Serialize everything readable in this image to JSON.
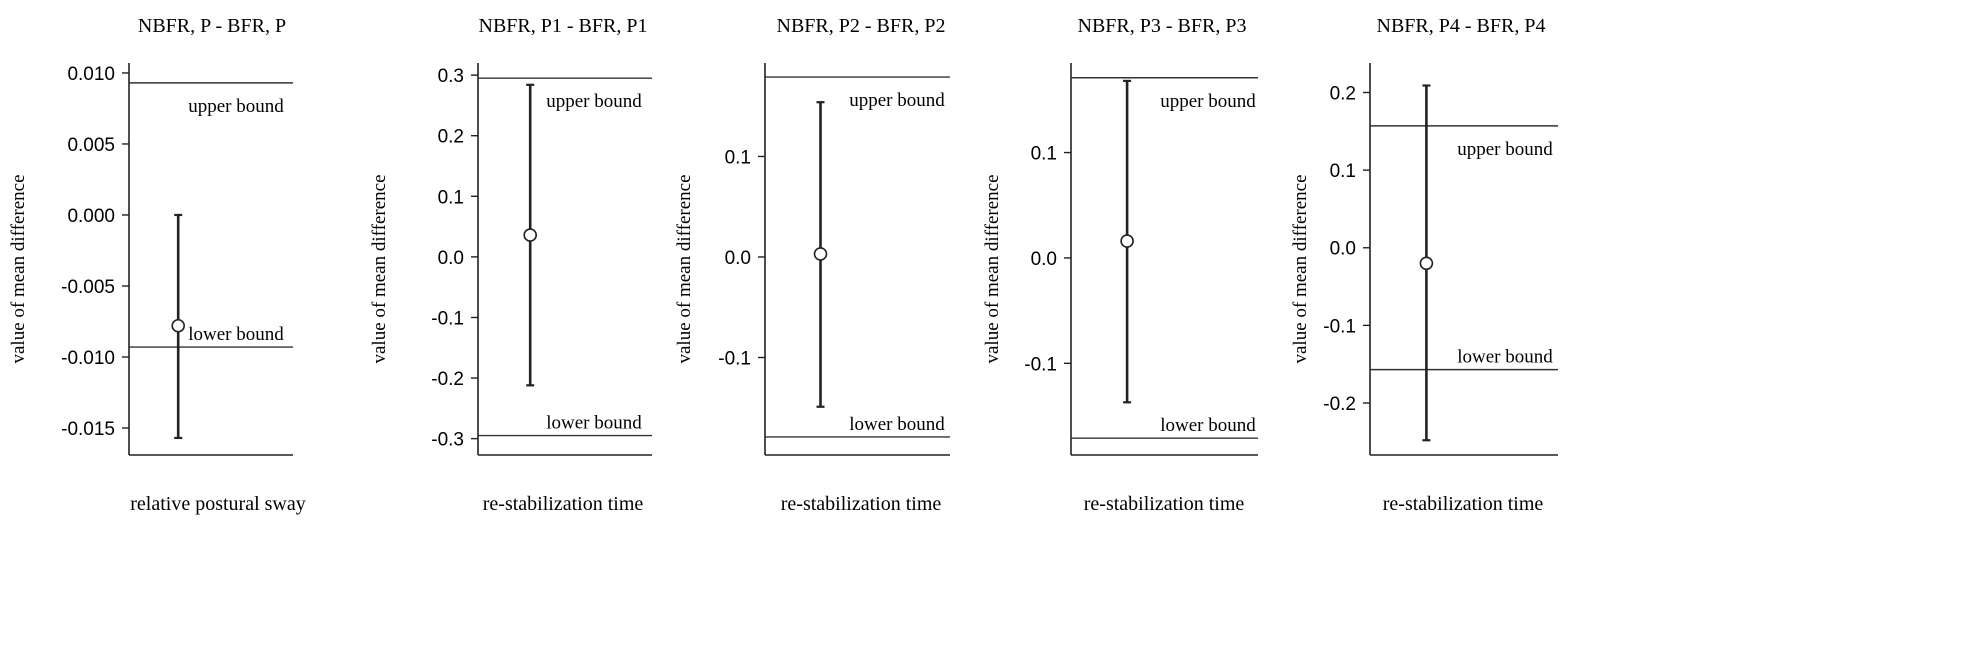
{
  "chart_data": [
    {
      "type": "errorbar",
      "title": "NBFR, P - BFR, P",
      "xlabel": "relative postural sway",
      "ylabel": "value of mean difference",
      "ylim": [
        -0.0169,
        0.0107
      ],
      "yticks": [
        0.01,
        0.005,
        0.0,
        -0.005,
        -0.01,
        -0.015
      ],
      "ytick_labels": [
        "0.010",
        "0.005",
        "0.000",
        "-0.005",
        "-0.010",
        "-0.015"
      ],
      "mean": -0.0078,
      "ci_lower": -0.0157,
      "ci_upper": 0.0,
      "upper_bound": 0.0093,
      "lower_bound": -0.0093,
      "upper_bound_label": "upper bound",
      "lower_bound_label": "lower bound"
    },
    {
      "type": "errorbar",
      "title": "NBFR, P1 - BFR, P1",
      "xlabel": "re-stabilization time",
      "ylabel": "value of mean difference",
      "ylim": [
        -0.327,
        0.32
      ],
      "yticks": [
        0.3,
        0.2,
        0.1,
        0.0,
        -0.1,
        -0.2,
        -0.3
      ],
      "ytick_labels": [
        "0.3",
        "0.2",
        "0.1",
        "0.0",
        "-0.1",
        "-0.2",
        "-0.3"
      ],
      "mean": 0.036,
      "ci_lower": -0.212,
      "ci_upper": 0.284,
      "upper_bound": 0.295,
      "lower_bound": -0.295,
      "upper_bound_label": "upper bound",
      "lower_bound_label": "lower bound"
    },
    {
      "type": "errorbar",
      "title": "NBFR, P2 - BFR, P2",
      "xlabel": "re-stabilization time",
      "ylabel": "value of mean difference",
      "ylim": [
        -0.197,
        0.193
      ],
      "yticks": [
        0.1,
        0.0,
        -0.1
      ],
      "ytick_labels": [
        "0.1",
        "0.0",
        "-0.1"
      ],
      "mean": 0.003,
      "ci_lower": -0.149,
      "ci_upper": 0.154,
      "upper_bound": 0.179,
      "lower_bound": -0.179,
      "upper_bound_label": "upper bound",
      "lower_bound_label": "lower bound"
    },
    {
      "type": "errorbar",
      "title": "NBFR, P3 - BFR, P3",
      "xlabel": "re-stabilization time",
      "ylabel": "value of mean difference",
      "ylim": [
        -0.187,
        0.185
      ],
      "yticks": [
        0.1,
        0.0,
        -0.1
      ],
      "ytick_labels": [
        "0.1",
        "0.0",
        "-0.1"
      ],
      "mean": 0.016,
      "ci_lower": -0.137,
      "ci_upper": 0.168,
      "upper_bound": 0.171,
      "lower_bound": -0.171,
      "upper_bound_label": "upper bound",
      "lower_bound_label": "lower bound"
    },
    {
      "type": "errorbar",
      "title": "NBFR, P4 - BFR, P4",
      "xlabel": "re-stabilization time",
      "ylabel": "value of mean difference",
      "ylim": [
        -0.267,
        0.238
      ],
      "yticks": [
        0.2,
        0.1,
        0.0,
        -0.1,
        -0.2
      ],
      "ytick_labels": [
        "0.2",
        "0.1",
        "0.0",
        "-0.1",
        "-0.2"
      ],
      "mean": -0.02,
      "ci_lower": -0.248,
      "ci_upper": 0.209,
      "upper_bound": 0.157,
      "lower_bound": -0.157,
      "upper_bound_label": "upper bound",
      "lower_bound_label": "lower bound"
    }
  ]
}
